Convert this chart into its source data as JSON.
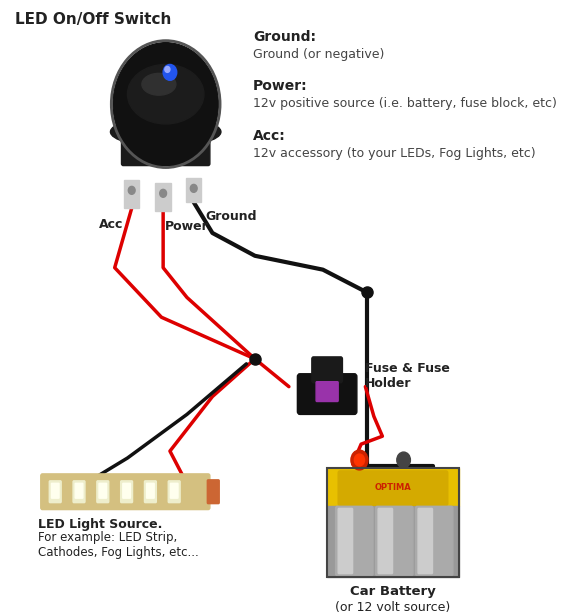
{
  "bg_color": "#ffffff",
  "title": "LED On/Off Switch",
  "legend": {
    "ground_label": "Ground:",
    "ground_desc": "Ground (or negative)",
    "power_label": "Power:",
    "power_desc": "12v positive source (i.e. battery, fuse block, etc)",
    "acc_label": "Acc:",
    "acc_desc": "12v accessory (to your LEDs, Fog Lights, etc)"
  },
  "labels": {
    "acc": "Acc",
    "power": "Power",
    "ground": "Ground",
    "fuse": "Fuse & Fuse\nHolder",
    "led_source": "LED Light Source.",
    "led_desc": "For example: LED Strip,\nCathodes, Fog Lights, etc...",
    "battery": "Car Battery",
    "battery_sub": "(or 12 volt source)"
  },
  "wire_red": "#dd0000",
  "wire_black": "#111111",
  "wire_lw": 2.5
}
